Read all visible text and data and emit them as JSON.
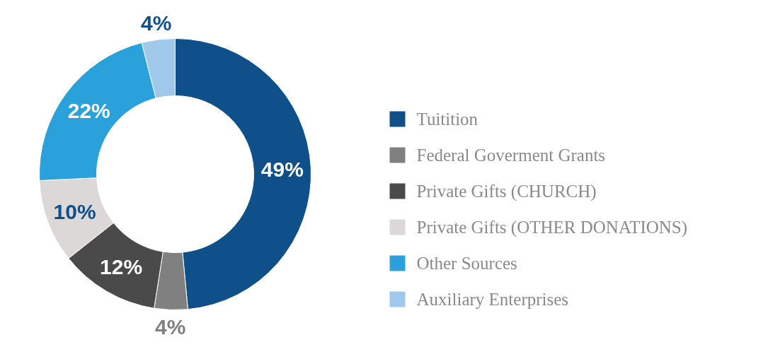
{
  "chart_data": {
    "type": "donut",
    "categories": [
      "Tuitition",
      "Federal Goverment Grants",
      "Private Gifts (CHURCH)",
      "Private Gifts (OTHER DONATIONS)",
      "Other Sources",
      "Auxiliary Enterprises"
    ],
    "values": [
      49,
      4,
      12,
      10,
      22,
      4
    ],
    "colors": [
      "#0f4f8a",
      "#808080",
      "#4a4a4a",
      "#dcd8d8",
      "#2aa1db",
      "#a0c8ea"
    ],
    "value_labels": [
      "49%",
      "4%",
      "12%",
      "10%",
      "22%",
      "4%"
    ],
    "legend": "right"
  }
}
